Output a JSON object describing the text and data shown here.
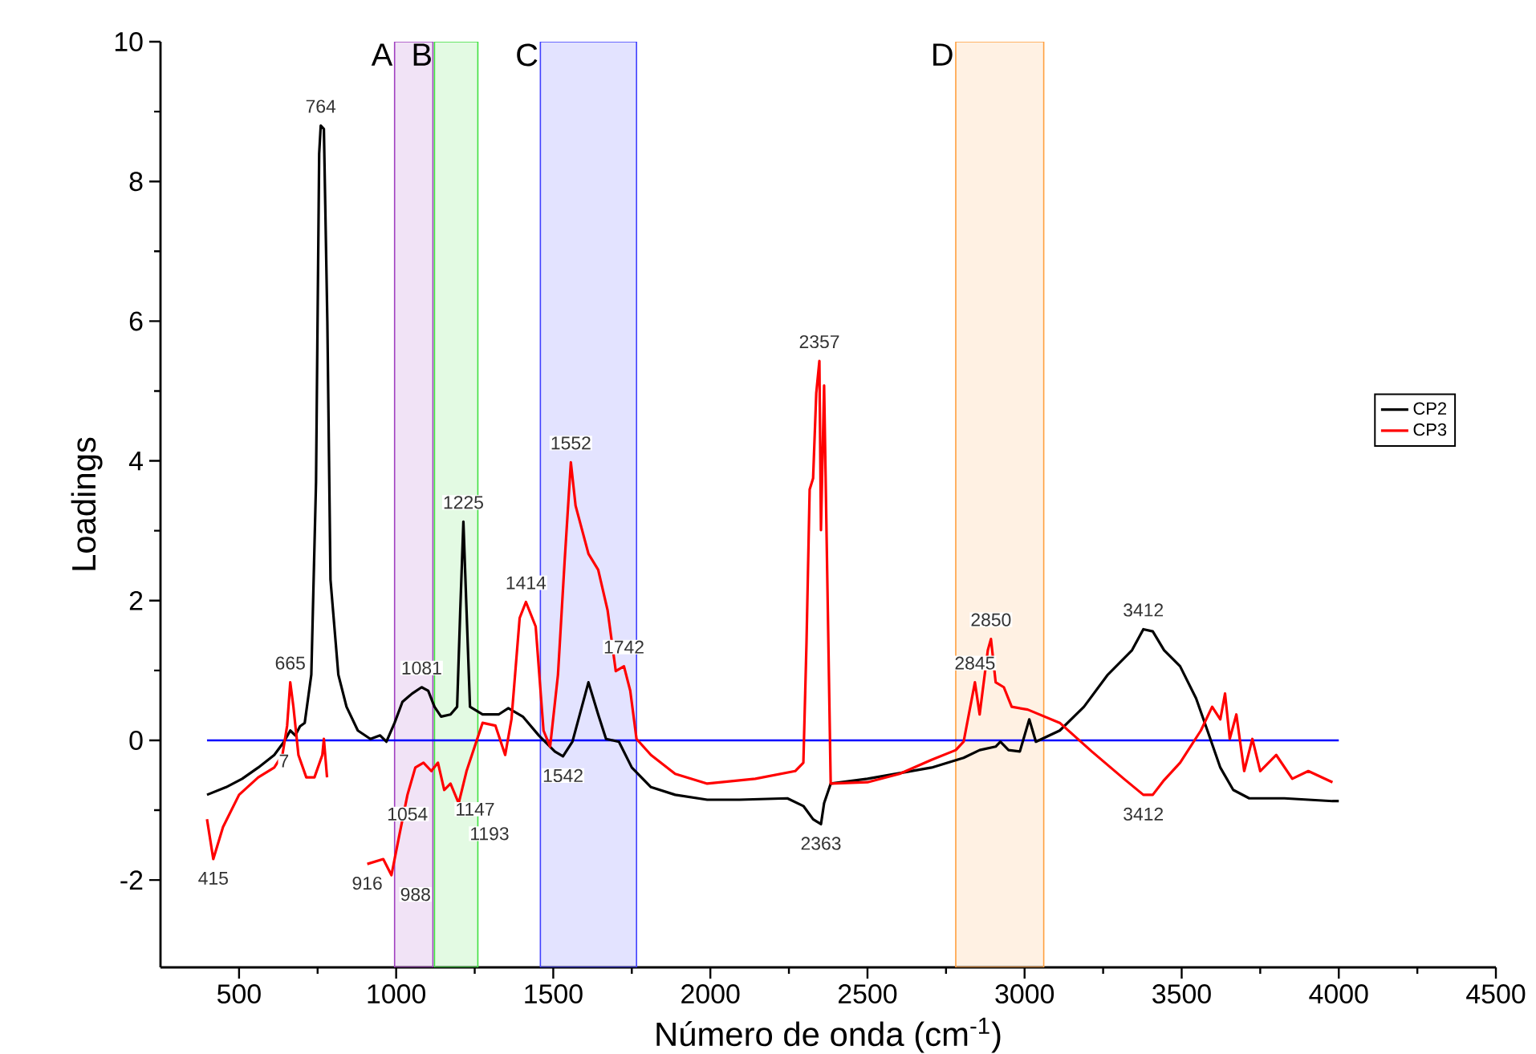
{
  "chart_data": {
    "type": "line",
    "xlabel": "Número de onda (cm$^{-1}$)",
    "ylabel": "Loadings",
    "xlim": [
      250,
      4500
    ],
    "ylim": [
      -3.25,
      10
    ],
    "xticks": [
      500,
      1000,
      1500,
      2000,
      2500,
      3000,
      3500,
      4000,
      4500
    ],
    "yticks": [
      -2,
      0,
      2,
      4,
      6,
      8,
      10
    ],
    "legend": "right",
    "grid": false,
    "series": [
      {
        "name": "CP2",
        "color": "#000000",
        "x": [
          398,
          459,
          510,
          561,
          612,
          643,
          663,
          679,
          694,
          709,
          730,
          745,
          755,
          760,
          770,
          781,
          791,
          816,
          842,
          878,
          918,
          949,
          969,
          995,
          1020,
          1051,
          1081,
          1102,
          1122,
          1143,
          1173,
          1194,
          1204,
          1214,
          1224,
          1235,
          1275,
          1326,
          1357,
          1403,
          1454,
          1505,
          1531,
          1561,
          1612,
          1643,
          1668,
          1709,
          1750,
          1811,
          1888,
          1990,
          2092,
          2245,
          2296,
          2327,
          2352,
          2362,
          2383,
          2500,
          2704,
          2806,
          2857,
          2908,
          2923,
          2949,
          2985,
          3015,
          3036,
          3112,
          3189,
          3265,
          3342,
          3378,
          3408,
          3444,
          3495,
          3546,
          3582,
          3623,
          3664,
          3715,
          3827,
          3980,
          4000
        ],
        "values": [
          -0.78,
          -0.67,
          -0.55,
          -0.39,
          -0.21,
          -0.02,
          0.14,
          0.07,
          0.2,
          0.25,
          0.94,
          3.7,
          8.4,
          8.8,
          8.75,
          6.0,
          2.3,
          0.94,
          0.48,
          0.14,
          0.02,
          0.07,
          -0.02,
          0.25,
          0.55,
          0.67,
          0.76,
          0.71,
          0.48,
          0.34,
          0.37,
          0.48,
          1.86,
          3.13,
          1.86,
          0.48,
          0.37,
          0.37,
          0.46,
          0.34,
          0.07,
          -0.16,
          -0.23,
          -0.02,
          0.83,
          0.37,
          0.02,
          -0.02,
          -0.39,
          -0.67,
          -0.78,
          -0.85,
          -0.85,
          -0.83,
          -0.94,
          -1.13,
          -1.2,
          -0.9,
          -0.62,
          -0.55,
          -0.39,
          -0.25,
          -0.14,
          -0.09,
          -0.02,
          -0.14,
          -0.16,
          0.3,
          -0.02,
          0.14,
          0.48,
          0.94,
          1.29,
          1.59,
          1.56,
          1.29,
          1.06,
          0.6,
          0.14,
          -0.39,
          -0.71,
          -0.83,
          -0.83,
          -0.87,
          -0.87
        ]
      },
      {
        "name": "CP3",
        "color": "#ff0000",
        "x": [
          398,
          418,
          449,
          500,
          561,
          612,
          638,
          653,
          663,
          673,
          689,
          714,
          740,
          765,
          770,
          780,
          800,
          908,
          959,
          985,
          1010,
          1036,
          1061,
          1087,
          1112,
          1133,
          1153,
          1173,
          1199,
          1224,
          1255,
          1275,
          1316,
          1347,
          1367,
          1393,
          1413,
          1444,
          1469,
          1490,
          1515,
          1536,
          1556,
          1571,
          1612,
          1643,
          1673,
          1699,
          1725,
          1745,
          1765,
          1811,
          1888,
          1990,
          2143,
          2270,
          2296,
          2306,
          2316,
          2327,
          2337,
          2347,
          2352,
          2362,
          2383,
          2500,
          2602,
          2704,
          2781,
          2806,
          2842,
          2857,
          2883,
          2893,
          2908,
          2934,
          2959,
          3010,
          3112,
          3214,
          3316,
          3378,
          3408,
          3444,
          3495,
          3561,
          3597,
          3623,
          3638,
          3653,
          3674,
          3699,
          3725,
          3750,
          3801,
          3852,
          3903,
          3980
        ],
        "values": [
          -1.13,
          -1.7,
          -1.24,
          -0.78,
          -0.53,
          -0.39,
          -0.21,
          0.21,
          0.83,
          0.48,
          -0.21,
          -0.53,
          -0.53,
          -0.21,
          0.02,
          -0.53,
          null,
          -1.77,
          -1.7,
          -1.93,
          -1.36,
          -0.78,
          -0.39,
          -0.32,
          -0.44,
          -0.32,
          -0.71,
          -0.62,
          -0.9,
          -0.44,
          -0.02,
          0.25,
          0.21,
          -0.21,
          0.3,
          1.75,
          1.98,
          1.63,
          0.14,
          -0.09,
          0.94,
          2.55,
          3.98,
          3.36,
          2.67,
          2.44,
          1.86,
          0.99,
          1.06,
          0.71,
          0.02,
          -0.21,
          -0.48,
          -0.62,
          -0.55,
          -0.44,
          -0.32,
          1.4,
          3.59,
          3.75,
          4.97,
          5.43,
          3.01,
          5.08,
          -0.62,
          -0.6,
          -0.48,
          -0.28,
          -0.14,
          -0.02,
          0.83,
          0.37,
          1.29,
          1.45,
          0.83,
          0.76,
          0.48,
          0.44,
          0.25,
          -0.16,
          -0.55,
          -0.78,
          -0.78,
          -0.57,
          -0.32,
          0.14,
          0.48,
          0.3,
          0.67,
          0.02,
          0.37,
          -0.44,
          0.02,
          -0.44,
          -0.21,
          -0.55,
          -0.44,
          -0.6
        ]
      }
    ],
    "ref_lines": [
      {
        "axis": "y",
        "value": 0,
        "color": "#0000ff"
      }
    ],
    "bands": [
      {
        "axis": "x",
        "from": 995,
        "to": 1117,
        "label": "A",
        "color": "#a040c0"
      },
      {
        "axis": "x",
        "from": 1122,
        "to": 1260,
        "label": "B",
        "color": "#40e040"
      },
      {
        "axis": "x",
        "from": 1459,
        "to": 1765,
        "label": "C",
        "color": "#4040ff"
      },
      {
        "axis": "x",
        "from": 2781,
        "to": 3061,
        "label": "D",
        "color": "#ffa040"
      }
    ],
    "annotations": [
      {
        "text": "764",
        "x": 760,
        "y": 8.8
      },
      {
        "text": "665",
        "x": 663,
        "y": 0.83
      },
      {
        "text": "7",
        "x": 643,
        "y": -0.02
      },
      {
        "text": "415",
        "x": 418,
        "y": -1.7
      },
      {
        "text": "916",
        "x": 908,
        "y": -1.77
      },
      {
        "text": "988",
        "x": 985,
        "y": -1.93
      },
      {
        "text": "1054",
        "x": 1036,
        "y": -0.78
      },
      {
        "text": "1147",
        "x": 1153,
        "y": -0.71
      },
      {
        "text": "1193",
        "x": 1199,
        "y": -0.9
      },
      {
        "text": "1081",
        "x": 1081,
        "y": 0.76
      },
      {
        "text": "1225",
        "x": 1214,
        "y": 3.13
      },
      {
        "text": "1414",
        "x": 1413,
        "y": 1.98
      },
      {
        "text": "1552",
        "x": 1556,
        "y": 3.98
      },
      {
        "text": "1742",
        "x": 1725,
        "y": 1.06
      },
      {
        "text": "1542",
        "x": 1531,
        "y": -0.23
      },
      {
        "text": "2357",
        "x": 2347,
        "y": 5.43
      },
      {
        "text": "2363",
        "x": 2352,
        "y": -1.2
      },
      {
        "text": "2845",
        "x": 2842,
        "y": 0.83
      },
      {
        "text": "2850",
        "x": 2893,
        "y": 1.45
      },
      {
        "text": "3412",
        "x": 3378,
        "y": 1.59
      },
      {
        "text": "3412",
        "x": 3378,
        "y": -0.78
      }
    ]
  }
}
